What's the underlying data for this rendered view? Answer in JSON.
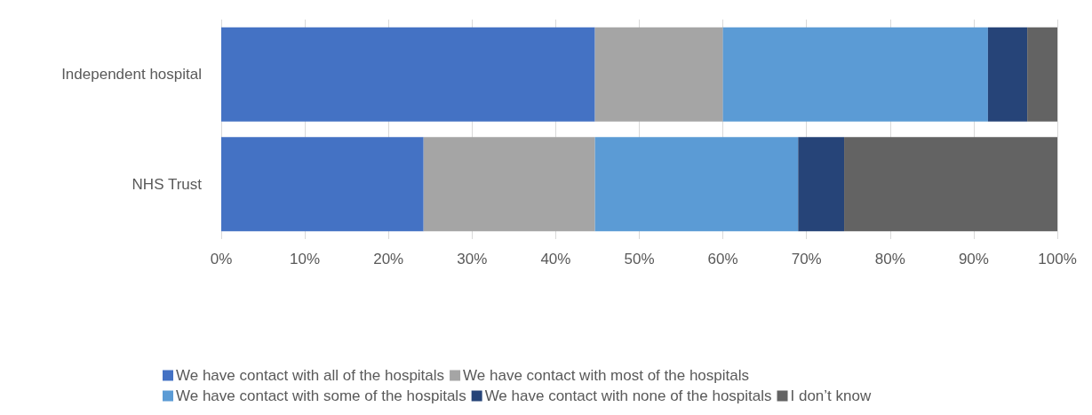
{
  "chart_data": {
    "type": "bar",
    "orientation": "horizontal",
    "stacked": true,
    "categories": [
      "Independent hospital",
      "NHS Trust"
    ],
    "series": [
      {
        "name": "We have contact with all of the hospitals",
        "color": "#4472c4",
        "values": [
          44.7,
          24.2
        ]
      },
      {
        "name": "We have contact with most of the hospitals",
        "color": "#a5a5a5",
        "values": [
          15.3,
          20.5
        ]
      },
      {
        "name": "We have contact with some of the hospitals",
        "color": "#5b9bd5",
        "values": [
          31.7,
          24.3
        ]
      },
      {
        "name": "We have contact with none of the hospitals",
        "color": "#264478",
        "values": [
          4.7,
          5.5
        ]
      },
      {
        "name": "I don’t know",
        "color": "#636363",
        "values": [
          3.6,
          25.5
        ]
      }
    ],
    "xlim": [
      0,
      100
    ],
    "xticks": [
      {
        "value": 0,
        "label": "0%"
      },
      {
        "value": 10,
        "label": "10%"
      },
      {
        "value": 20,
        "label": "20%"
      },
      {
        "value": 30,
        "label": "30%"
      },
      {
        "value": 40,
        "label": "40%"
      },
      {
        "value": 50,
        "label": "50%"
      },
      {
        "value": 60,
        "label": "60%"
      },
      {
        "value": 70,
        "label": "70%"
      },
      {
        "value": 80,
        "label": "80%"
      },
      {
        "value": 90,
        "label": "90%"
      },
      {
        "value": 100,
        "label": "100%"
      }
    ],
    "grid": "x",
    "legend": "bottom"
  }
}
